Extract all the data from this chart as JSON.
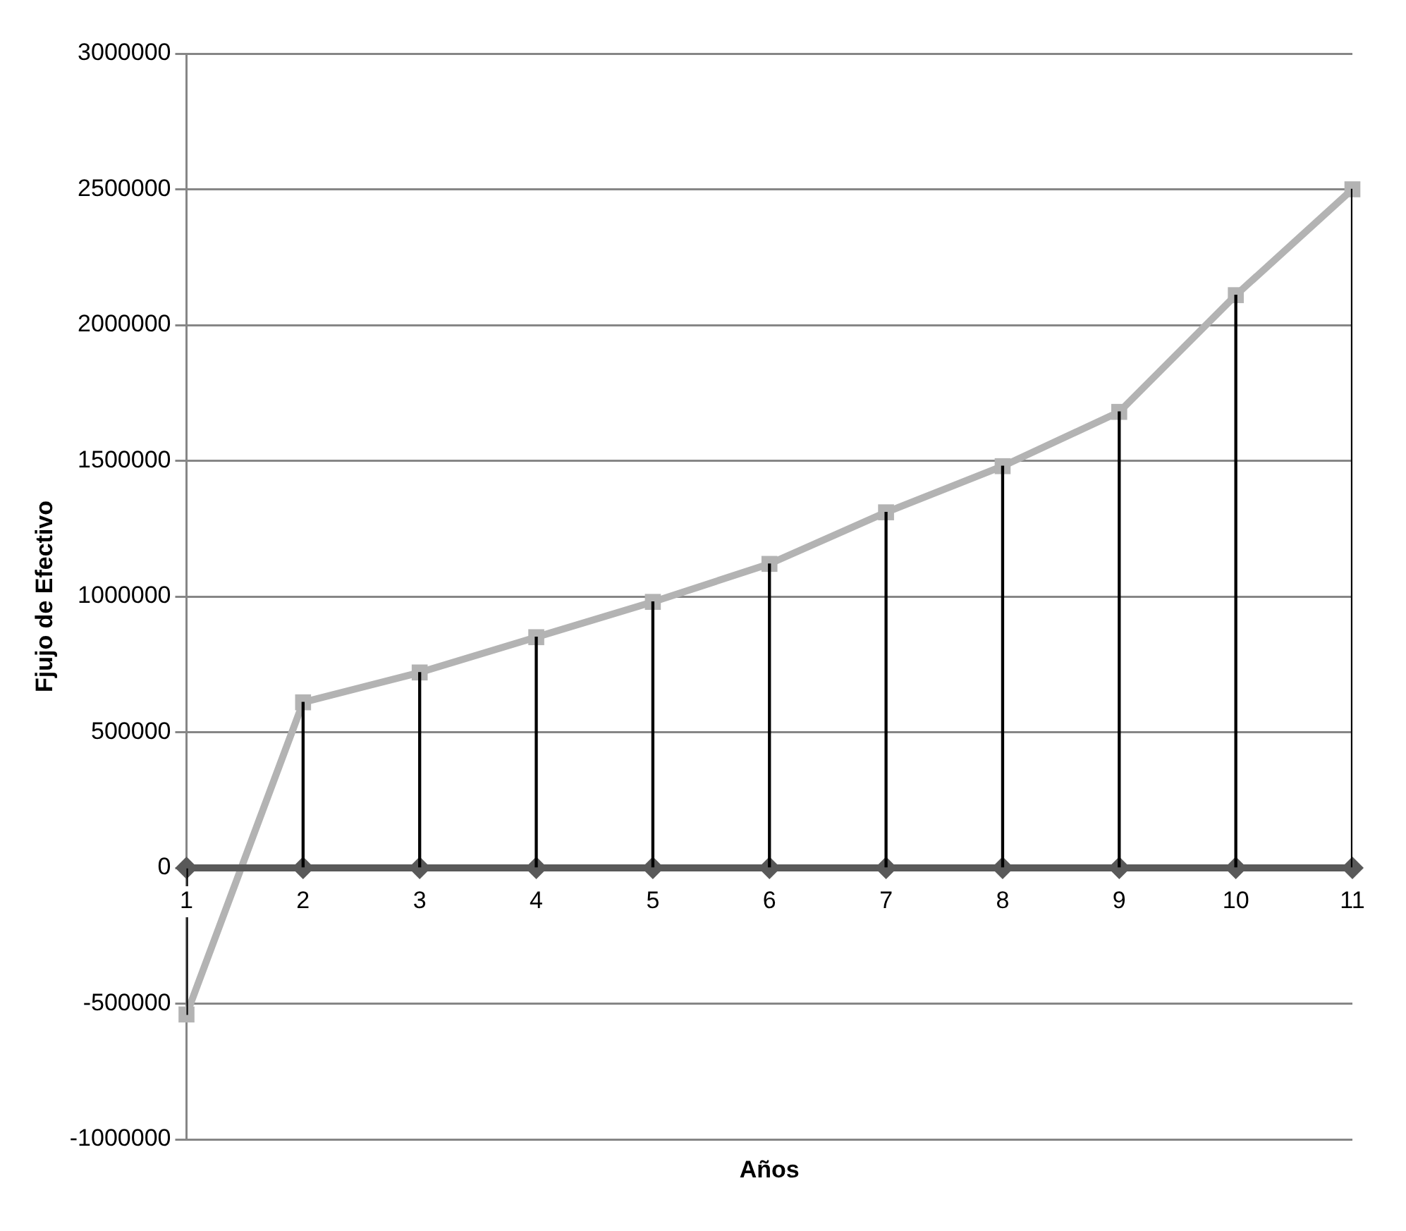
{
  "chart_data": {
    "type": "line",
    "xlabel": "Años",
    "ylabel": "Fjujo de Efectivo",
    "categories": [
      "1",
      "2",
      "3",
      "4",
      "5",
      "6",
      "7",
      "8",
      "9",
      "10",
      "11"
    ],
    "series": [
      {
        "color": "#595959",
        "marker": "diamond",
        "values": [
          0,
          0,
          0,
          0,
          0,
          0,
          0,
          0,
          0,
          0,
          0
        ]
      },
      {
        "type": "bar",
        "color": "#000000",
        "values": [
          -540000,
          610000,
          720000,
          850000,
          980000,
          1120000,
          1310000,
          1480000,
          1680000,
          2110000,
          2500000
        ]
      },
      {
        "color": "#b3b3b3",
        "marker": "square",
        "values": [
          -540000,
          610000,
          720000,
          850000,
          980000,
          1120000,
          1310000,
          1480000,
          1680000,
          2110000,
          2500000
        ]
      }
    ],
    "ylim": [
      -1000000,
      3000000
    ],
    "yticks": [
      -1000000,
      -500000,
      0,
      500000,
      1000000,
      1500000,
      2000000,
      2500000,
      3000000
    ],
    "grid": "y",
    "legend": false
  }
}
